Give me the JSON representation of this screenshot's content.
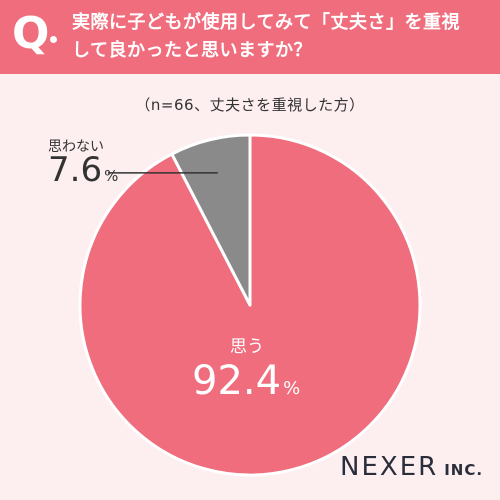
{
  "question": {
    "mark": "Q",
    "line1": "実際に子どもが使用してみて「丈夫さ」を重視",
    "line2": "して良かったと思いますか？"
  },
  "subtitle": "（n=66、丈夫さを重視した方）",
  "chart_data": {
    "type": "pie",
    "title": "",
    "slices": [
      {
        "label": "思う",
        "value": 92.4,
        "display_value": "92.4",
        "unit": "%",
        "color": "#ef6d7d"
      },
      {
        "label": "思わない",
        "value": 7.6,
        "display_value": "7.6",
        "unit": "%",
        "color": "#8a8a8a"
      }
    ],
    "start_angle": "12 o'clock",
    "direction": "counterclockwise"
  },
  "logo": {
    "name": "NEXER",
    "suffix": "INC."
  },
  "colors": {
    "accent": "#ef6d7d",
    "background": "#fdeef0",
    "slice_border": "#ffffff"
  }
}
